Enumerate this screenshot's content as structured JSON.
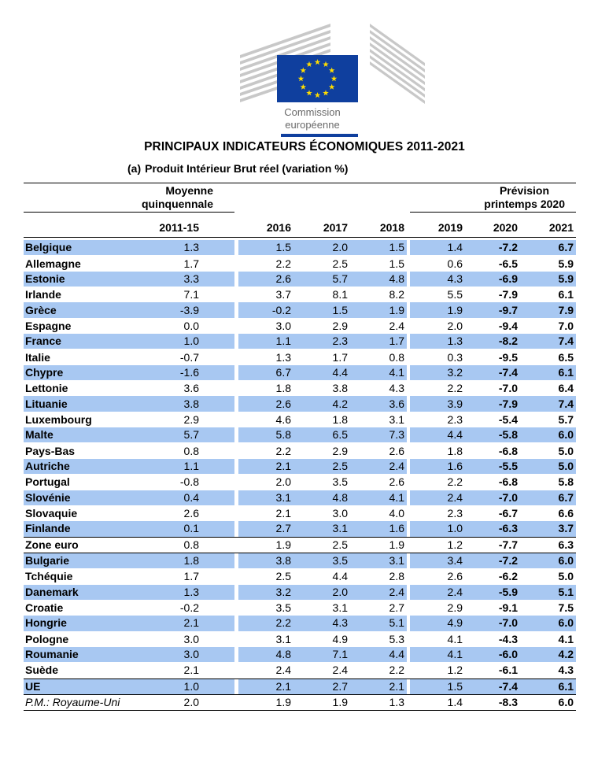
{
  "logo": {
    "line1": "Commission",
    "line2": "européenne"
  },
  "title": "PRINCIPAUX INDICATEURS ÉCONOMIQUES 2011-2021",
  "subtitle": {
    "label": "(a)",
    "text": "Produit Intérieur Brut réel (variation %)"
  },
  "table": {
    "group_headers": {
      "average": [
        "Moyenne",
        "quinquennale"
      ],
      "forecast": [
        "Prévision",
        "printemps 2020"
      ]
    },
    "columns": [
      "2011-15",
      "2016",
      "2017",
      "2018",
      "2019",
      "2020",
      "2021"
    ],
    "rows": [
      [
        "Belgique",
        "1.3",
        "1.5",
        "2.0",
        "1.5",
        "1.4",
        "-7.2",
        "6.7"
      ],
      [
        "Allemagne",
        "1.7",
        "2.2",
        "2.5",
        "1.5",
        "0.6",
        "-6.5",
        "5.9"
      ],
      [
        "Estonie",
        "3.3",
        "2.6",
        "5.7",
        "4.8",
        "4.3",
        "-6.9",
        "5.9"
      ],
      [
        "Irlande",
        "7.1",
        "3.7",
        "8.1",
        "8.2",
        "5.5",
        "-7.9",
        "6.1"
      ],
      [
        "Grèce",
        "-3.9",
        "-0.2",
        "1.5",
        "1.9",
        "1.9",
        "-9.7",
        "7.9"
      ],
      [
        "Espagne",
        "0.0",
        "3.0",
        "2.9",
        "2.4",
        "2.0",
        "-9.4",
        "7.0"
      ],
      [
        "France",
        "1.0",
        "1.1",
        "2.3",
        "1.7",
        "1.3",
        "-8.2",
        "7.4"
      ],
      [
        "Italie",
        "-0.7",
        "1.3",
        "1.7",
        "0.8",
        "0.3",
        "-9.5",
        "6.5"
      ],
      [
        "Chypre",
        "-1.6",
        "6.7",
        "4.4",
        "4.1",
        "3.2",
        "-7.4",
        "6.1"
      ],
      [
        "Lettonie",
        "3.6",
        "1.8",
        "3.8",
        "4.3",
        "2.2",
        "-7.0",
        "6.4"
      ],
      [
        "Lituanie",
        "3.8",
        "2.6",
        "4.2",
        "3.6",
        "3.9",
        "-7.9",
        "7.4"
      ],
      [
        "Luxembourg",
        "2.9",
        "4.6",
        "1.8",
        "3.1",
        "2.3",
        "-5.4",
        "5.7"
      ],
      [
        "Malte",
        "5.7",
        "5.8",
        "6.5",
        "7.3",
        "4.4",
        "-5.8",
        "6.0"
      ],
      [
        "Pays-Bas",
        "0.8",
        "2.2",
        "2.9",
        "2.6",
        "1.8",
        "-6.8",
        "5.0"
      ],
      [
        "Autriche",
        "1.1",
        "2.1",
        "2.5",
        "2.4",
        "1.6",
        "-5.5",
        "5.0"
      ],
      [
        "Portugal",
        "-0.8",
        "2.0",
        "3.5",
        "2.6",
        "2.2",
        "-6.8",
        "5.8"
      ],
      [
        "Slovénie",
        "0.4",
        "3.1",
        "4.8",
        "4.1",
        "2.4",
        "-7.0",
        "6.7"
      ],
      [
        "Slovaquie",
        "2.6",
        "2.1",
        "3.0",
        "4.0",
        "2.3",
        "-6.7",
        "6.6"
      ],
      [
        "Finlande",
        "0.1",
        "2.7",
        "3.1",
        "1.6",
        "1.0",
        "-6.3",
        "3.7"
      ],
      [
        "Zone euro",
        "0.8",
        "1.9",
        "2.5",
        "1.9",
        "1.2",
        "-7.7",
        "6.3"
      ],
      [
        "Bulgarie",
        "1.8",
        "3.8",
        "3.5",
        "3.1",
        "3.4",
        "-7.2",
        "6.0"
      ],
      [
        "Tchéquie",
        "1.7",
        "2.5",
        "4.4",
        "2.8",
        "2.6",
        "-6.2",
        "5.0"
      ],
      [
        "Danemark",
        "1.3",
        "3.2",
        "2.0",
        "2.4",
        "2.4",
        "-5.9",
        "5.1"
      ],
      [
        "Croatie",
        "-0.2",
        "3.5",
        "3.1",
        "2.7",
        "2.9",
        "-9.1",
        "7.5"
      ],
      [
        "Hongrie",
        "2.1",
        "2.2",
        "4.3",
        "5.1",
        "4.9",
        "-7.0",
        "6.0"
      ],
      [
        "Pologne",
        "3.0",
        "3.1",
        "4.9",
        "5.3",
        "4.1",
        "-4.3",
        "4.1"
      ],
      [
        "Roumanie",
        "3.0",
        "4.8",
        "7.1",
        "4.4",
        "4.1",
        "-6.0",
        "4.2"
      ],
      [
        "Suède",
        "2.1",
        "2.4",
        "2.4",
        "2.2",
        "1.2",
        "-6.1",
        "4.3"
      ],
      [
        "UE",
        "1.0",
        "2.1",
        "2.7",
        "2.1",
        "1.5",
        "-7.4",
        "6.1"
      ],
      [
        "P.M.: Royaume-Uni",
        "2.0",
        "1.9",
        "1.9",
        "1.3",
        "1.4",
        "-8.3",
        "6.0"
      ]
    ]
  }
}
